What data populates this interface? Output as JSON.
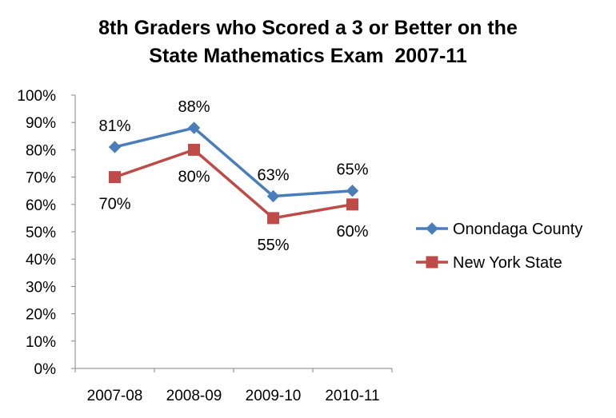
{
  "chart_data": {
    "type": "line",
    "title_lines": [
      "8th Graders who Scored a 3 or Better on the",
      "State Mathematics Exam  2007-11"
    ],
    "categories": [
      "2007-08",
      "2008-09",
      "2009-10",
      "2010-11"
    ],
    "ylim": [
      0,
      100
    ],
    "y_ticks": [
      "0%",
      "10%",
      "20%",
      "30%",
      "40%",
      "50%",
      "60%",
      "70%",
      "80%",
      "90%",
      "100%"
    ],
    "grid": false,
    "legend_position": "right",
    "series": [
      {
        "name": "Onondaga County",
        "values": [
          81,
          88,
          63,
          65
        ],
        "labels": [
          "81%",
          "88%",
          "63%",
          "65%"
        ],
        "color": "#4a7ebb",
        "marker": "diamond",
        "label_side": "above"
      },
      {
        "name": "New York State",
        "values": [
          70,
          80,
          55,
          60
        ],
        "labels": [
          "70%",
          "80%",
          "55%",
          "60%"
        ],
        "color": "#be4b48",
        "marker": "square",
        "label_side": "below"
      }
    ]
  }
}
